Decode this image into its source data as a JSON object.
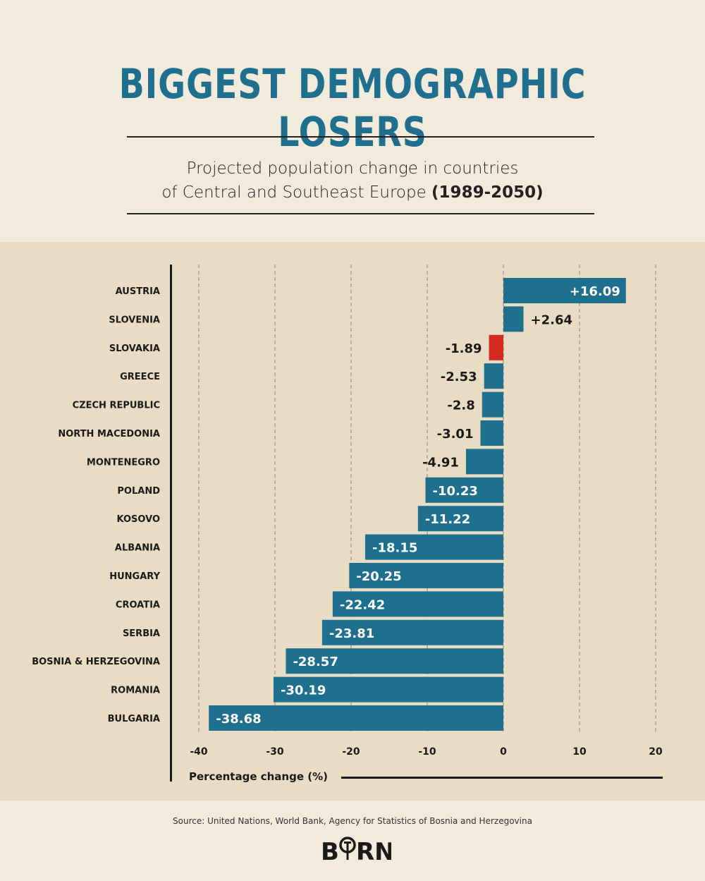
{
  "title": "BIGGEST DEMOGRAPHIC LOSERS",
  "subtitle_line1": "Projected population change in countries",
  "subtitle_line2": "of Central and Southeast Europe",
  "subtitle_years": "(1989-2050)",
  "source": "Source: United Nations, World Bank, Agency for Statistics of Bosnia and Herzegovina",
  "logo_text": "BIRN",
  "colors": {
    "bar": "#1f6f8e",
    "highlight": "#d42a22",
    "title": "#1f6f8e"
  },
  "chart_data": {
    "type": "bar",
    "orientation": "horizontal",
    "xlabel": "Percentage change (%)",
    "xlim": [
      -40,
      20
    ],
    "xticks": [
      -40,
      -30,
      -20,
      -10,
      0,
      10,
      20
    ],
    "grid": true,
    "categories": [
      "AUSTRIA",
      "SLOVENIA",
      "SLOVAKIA",
      "GREECE",
      "CZECH REPUBLIC",
      "NORTH MACEDONIA",
      "MONTENEGRO",
      "POLAND",
      "KOSOVO",
      "ALBANIA",
      "HUNGARY",
      "CROATIA",
      "SERBIA",
      "BOSNIA & HERZEGOVINA",
      "ROMANIA",
      "BULGARIA"
    ],
    "values": [
      16.09,
      2.64,
      -1.89,
      -2.53,
      -2.8,
      -3.01,
      -4.91,
      -10.23,
      -11.22,
      -18.15,
      -20.25,
      -22.42,
      -23.81,
      -28.57,
      -30.19,
      -38.68
    ],
    "labels": [
      "+16.09",
      "+2.64",
      "-1.89",
      "-2.53",
      "-2.8",
      "-3.01",
      "-4.91",
      "-10.23",
      "-11.22",
      "-18.15",
      "-20.25",
      "-22.42",
      "-23.81",
      "-28.57",
      "-30.19",
      "-38.68"
    ],
    "highlight": "SLOVAKIA"
  }
}
